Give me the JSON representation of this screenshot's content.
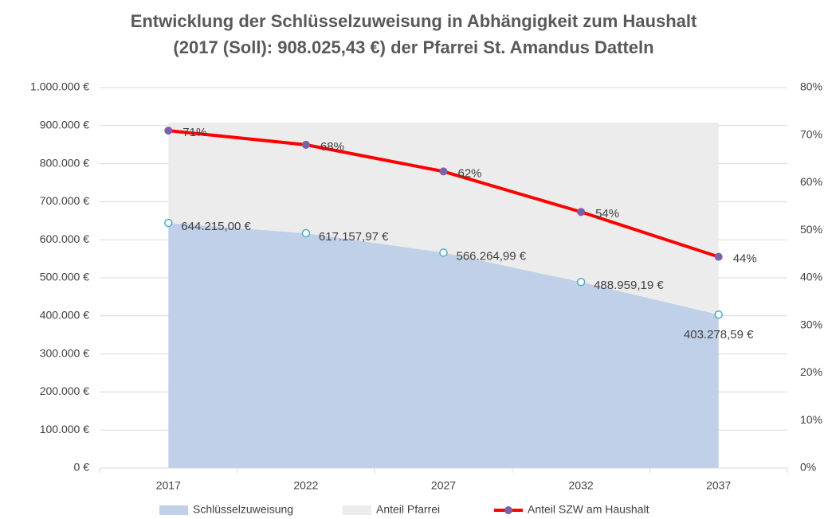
{
  "chart_data": {
    "type": "stacked-area-line",
    "title": [
      "Entwicklung der Schlüsselzuweisung in Abhängigkeit zum Haushalt",
      "(2017 (Soll): 908.025,43 €) der Pfarrei St. Amandus Datteln"
    ],
    "categories": [
      "2017",
      "2022",
      "2027",
      "2032",
      "2037"
    ],
    "series": [
      {
        "name": "Schlüsselzuweisung",
        "type": "area",
        "color": "#c0d0e8",
        "marker_color": "#4bacc6",
        "values": [
          644215.0,
          617157.97,
          566264.99,
          488959.19,
          403278.59
        ],
        "value_labels": [
          "644.215,00 €",
          "617.157,97 €",
          "566.264,99 €",
          "488.959,19 €",
          "403.278,59 €"
        ]
      },
      {
        "name": "Anteil Pfarrei",
        "type": "area",
        "color": "#ececec",
        "values": [
          263810.43,
          290867.46,
          341760.44,
          419066.24,
          504746.84
        ]
      },
      {
        "name": "Anteil SZW am Haushalt",
        "type": "line",
        "axis": "y2",
        "color": "#ff0000",
        "marker_color": "#7f5fa8",
        "values": [
          70.95,
          67.97,
          62.36,
          53.85,
          44.41
        ],
        "value_labels": [
          "71%",
          "68%",
          "62%",
          "54%",
          "44%"
        ]
      }
    ],
    "ylim": [
      0,
      1000000
    ],
    "yticks": [
      {
        "value": 0,
        "label": "0 €"
      },
      {
        "value": 100000,
        "label": "100.000 €"
      },
      {
        "value": 200000,
        "label": "200.000 €"
      },
      {
        "value": 300000,
        "label": "300.000 €"
      },
      {
        "value": 400000,
        "label": "400.000 €"
      },
      {
        "value": 500000,
        "label": "500.000 €"
      },
      {
        "value": 600000,
        "label": "600.000 €"
      },
      {
        "value": 700000,
        "label": "700.000 €"
      },
      {
        "value": 800000,
        "label": "800.000 €"
      },
      {
        "value": 900000,
        "label": "900.000 €"
      },
      {
        "value": 1000000,
        "label": "1.000.000 €"
      }
    ],
    "y2lim": [
      0,
      80
    ],
    "y2ticks": [
      {
        "value": 0,
        "label": "0%"
      },
      {
        "value": 10,
        "label": "10%"
      },
      {
        "value": 20,
        "label": "20%"
      },
      {
        "value": 30,
        "label": "30%"
      },
      {
        "value": 40,
        "label": "40%"
      },
      {
        "value": 50,
        "label": "50%"
      },
      {
        "value": 60,
        "label": "60%"
      },
      {
        "value": 70,
        "label": "70%"
      },
      {
        "value": 80,
        "label": "80%"
      }
    ],
    "grid": true,
    "legend": "bottom"
  }
}
